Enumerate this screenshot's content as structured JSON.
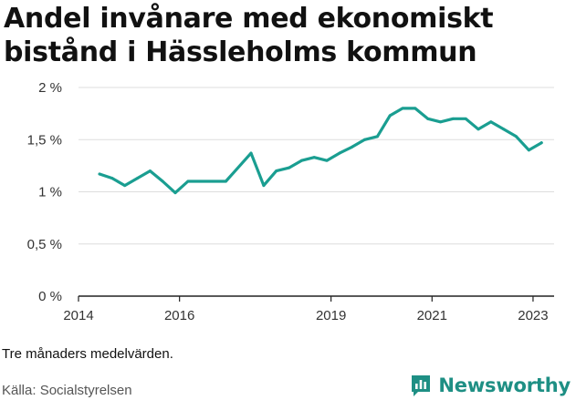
{
  "title": "Andel invånare med ekonomiskt bistånd i Hässleholms kommun",
  "note": "Tre månaders medelvärden.",
  "source": "Källa: Socialstyrelsen",
  "brand": {
    "name": "Newsworthy",
    "icon": "bar-chart-speech-bubble-icon",
    "color": "#1e8f84"
  },
  "colors": {
    "line": "#1a9e91",
    "grid": "#dddddd",
    "axis": "#222222"
  },
  "chart_data": {
    "type": "line",
    "title": "Andel invånare med ekonomiskt bistånd i Hässleholms kommun",
    "xlabel": "",
    "ylabel": "",
    "ylim": [
      0,
      2
    ],
    "xlim": [
      "2014-01",
      "2023-06"
    ],
    "grid": true,
    "y_ticks": [
      {
        "value": 0,
        "label": "0 %"
      },
      {
        "value": 0.5,
        "label": "0,5 %"
      },
      {
        "value": 1,
        "label": "1 %"
      },
      {
        "value": 1.5,
        "label": "1,5 %"
      },
      {
        "value": 2,
        "label": "2 %"
      }
    ],
    "x_ticks": [
      {
        "value": "2014-01",
        "label": "2014"
      },
      {
        "value": "2016-01",
        "label": "2016"
      },
      {
        "value": "2019-01",
        "label": "2019"
      },
      {
        "value": "2021-01",
        "label": "2021"
      },
      {
        "value": "2023-01",
        "label": "2023"
      }
    ],
    "series": [
      {
        "points": [
          {
            "x": "2014-06",
            "y": 1.17
          },
          {
            "x": "2014-09",
            "y": 1.13
          },
          {
            "x": "2014-12",
            "y": 1.06
          },
          {
            "x": "2015-03",
            "y": 1.13
          },
          {
            "x": "2015-06",
            "y": 1.2
          },
          {
            "x": "2015-09",
            "y": 1.1
          },
          {
            "x": "2015-12",
            "y": 0.99
          },
          {
            "x": "2016-03",
            "y": 1.1
          },
          {
            "x": "2016-06",
            "y": 1.1
          },
          {
            "x": "2016-09",
            "y": 1.1
          },
          {
            "x": "2016-12",
            "y": 1.1
          },
          {
            "x": "2017-06",
            "y": 1.37
          },
          {
            "x": "2017-09",
            "y": 1.06
          },
          {
            "x": "2017-12",
            "y": 1.2
          },
          {
            "x": "2018-03",
            "y": 1.23
          },
          {
            "x": "2018-06",
            "y": 1.3
          },
          {
            "x": "2018-09",
            "y": 1.33
          },
          {
            "x": "2018-12",
            "y": 1.3
          },
          {
            "x": "2019-03",
            "y": 1.37
          },
          {
            "x": "2019-06",
            "y": 1.43
          },
          {
            "x": "2019-09",
            "y": 1.5
          },
          {
            "x": "2019-12",
            "y": 1.53
          },
          {
            "x": "2020-03",
            "y": 1.73
          },
          {
            "x": "2020-06",
            "y": 1.8
          },
          {
            "x": "2020-09",
            "y": 1.8
          },
          {
            "x": "2020-12",
            "y": 1.7
          },
          {
            "x": "2021-03",
            "y": 1.67
          },
          {
            "x": "2021-06",
            "y": 1.7
          },
          {
            "x": "2021-09",
            "y": 1.7
          },
          {
            "x": "2021-12",
            "y": 1.6
          },
          {
            "x": "2022-03",
            "y": 1.67
          },
          {
            "x": "2022-06",
            "y": 1.6
          },
          {
            "x": "2022-09",
            "y": 1.53
          },
          {
            "x": "2022-12",
            "y": 1.4
          },
          {
            "x": "2023-03",
            "y": 1.47
          }
        ]
      }
    ]
  }
}
